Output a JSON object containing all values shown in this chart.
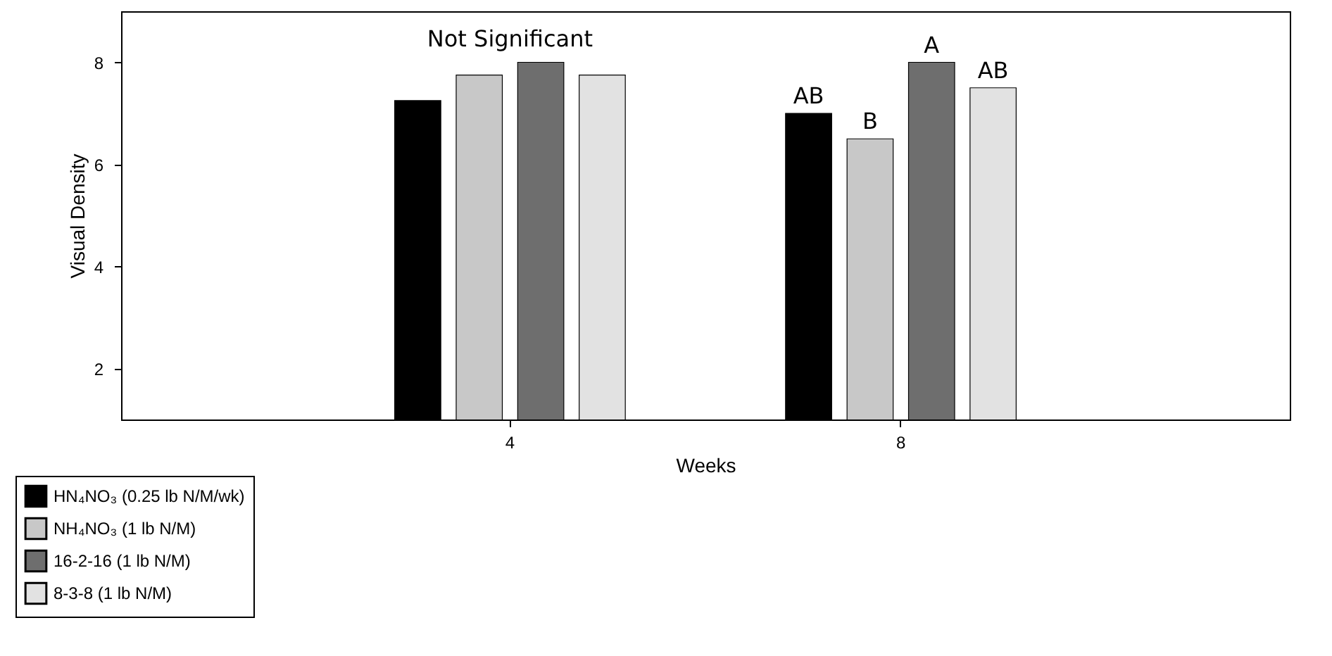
{
  "chart_data": {
    "type": "bar",
    "xlabel": "Weeks",
    "ylabel": "Visual Density",
    "categories": [
      "4",
      "8"
    ],
    "series": [
      {
        "name": "HN₄NO₃ (0.25 lb N/M/wk)",
        "color": "#000000",
        "values": [
          7.25,
          7.0
        ],
        "value_labels": [
          null,
          "AB"
        ]
      },
      {
        "name": "NH₄NO₃ (1 lb N/M)",
        "color": "#c8c8c8",
        "values": [
          7.75,
          6.5
        ],
        "value_labels": [
          null,
          "B"
        ]
      },
      {
        "name": "16-2-16 (1 lb N/M)",
        "color": "#6e6e6e",
        "values": [
          8.0,
          8.0
        ],
        "value_labels": [
          null,
          "A"
        ]
      },
      {
        "name": "8-3-8 (1 lb N/M)",
        "color": "#e2e2e2",
        "values": [
          7.75,
          7.5
        ],
        "value_labels": [
          null,
          "AB"
        ]
      }
    ],
    "annotations": [
      "Not Significant"
    ],
    "ylim": [
      1,
      9
    ],
    "yticks": [
      2,
      4,
      6,
      8
    ],
    "grid": false,
    "legend": "bottom left"
  }
}
